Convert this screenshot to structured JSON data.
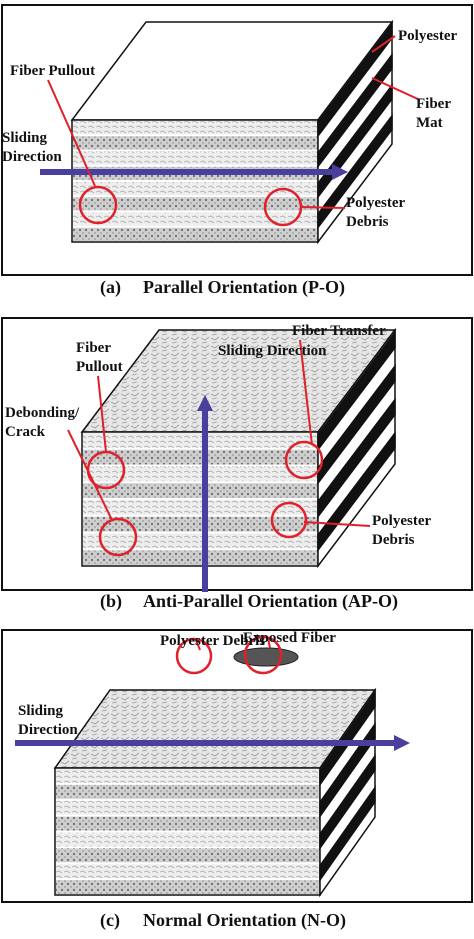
{
  "panels": [
    {
      "caption": {
        "tag": "(a)",
        "text": "Parallel Orientation (P-O)"
      },
      "annotations": [
        [
          "Polyester"
        ],
        [
          "Fiber",
          "Mat"
        ],
        [
          "Fiber Pullout"
        ],
        [
          "Sliding",
          "Direction"
        ],
        [
          "Polyester",
          "Debris"
        ]
      ]
    },
    {
      "caption": {
        "tag": "(b)",
        "text": "Anti-Parallel Orientation (AP-O)"
      },
      "annotations": [
        [
          "Fiber Transfer"
        ],
        [
          "Fiber",
          "Pullout"
        ],
        [
          "Sliding Direction"
        ],
        [
          "Debonding/",
          "Crack"
        ],
        [
          "Polyester",
          "Debris"
        ]
      ]
    },
    {
      "caption": {
        "tag": "(c)",
        "text": "Normal Orientation (N-O)"
      },
      "annotations": [
        [
          "Polyester Debris"
        ],
        [
          "Exposed Fiber"
        ],
        [
          "Sliding",
          "Direction"
        ]
      ]
    }
  ]
}
